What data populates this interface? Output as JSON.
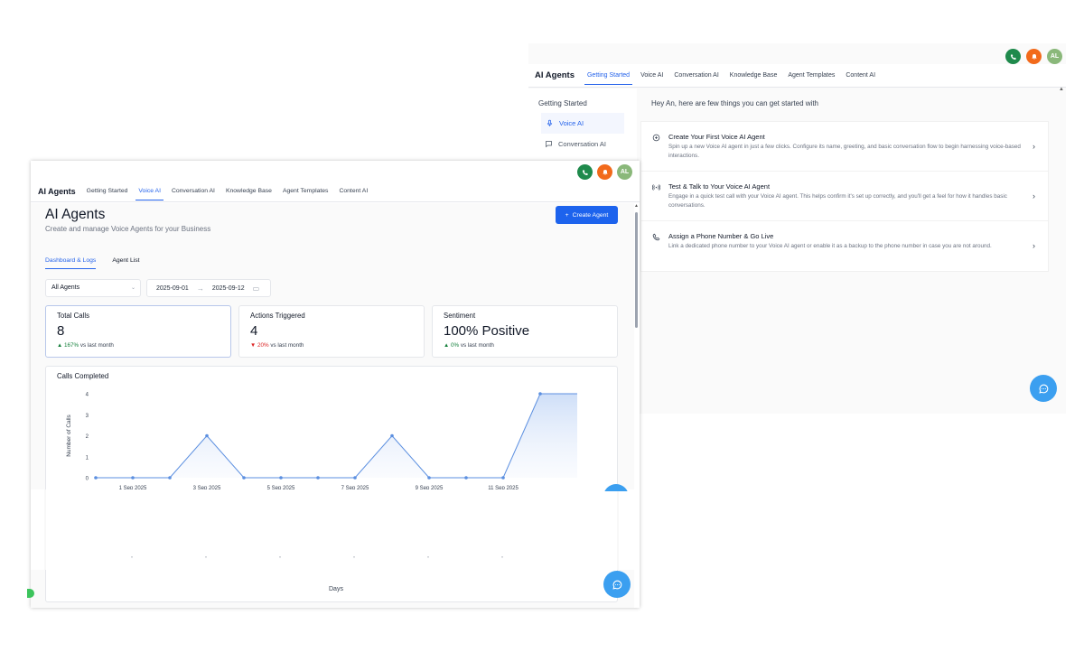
{
  "back": {
    "nav": {
      "title": "AI Agents",
      "tabs": [
        "Getting Started",
        "Voice AI",
        "Conversation AI",
        "Knowledge Base",
        "Agent Templates",
        "Content AI"
      ],
      "active_tab": "Getting Started"
    },
    "avatar_initials": "AL",
    "sidebar": {
      "heading": "Getting Started",
      "items": [
        {
          "label": "Voice AI",
          "icon": "mic-icon",
          "active": true
        },
        {
          "label": "Conversation AI",
          "icon": "chat-bubble-icon",
          "active": false
        }
      ]
    },
    "greeting": "Hey An, here are few things you can get started with",
    "cards": [
      {
        "icon": "plus-circle-icon",
        "title": "Create Your First Voice AI Agent",
        "desc": "Spin up a new Voice AI agent in just a few clicks. Configure its name, greeting, and basic conversation flow to begin harnessing voice-based interactions."
      },
      {
        "icon": "broadcast-icon",
        "title": "Test & Talk to Your Voice AI Agent",
        "desc": "Engage in a quick test call with your Voice AI agent. This helps confirm it's set up correctly, and you'll get a feel for how it handles basic conversations."
      },
      {
        "icon": "phone-icon",
        "title": "Assign a Phone Number & Go Live",
        "desc": "Link a dedicated phone number to your Voice AI agent or enable it as a backup to the phone number in case you are not around."
      }
    ]
  },
  "front": {
    "nav": {
      "title": "AI Agents",
      "tabs": [
        "Getting Started",
        "Voice AI",
        "Conversation AI",
        "Knowledge Base",
        "Agent Templates",
        "Content AI"
      ],
      "active_tab": "Voice AI"
    },
    "avatar_initials": "AL",
    "page_title": "AI Agents",
    "page_subtitle": "Create and manage Voice Agents for your Business",
    "create_button": "Create Agent",
    "sub_tabs": [
      "Dashboard & Logs",
      "Agent List"
    ],
    "filter_value": "All Agents",
    "date_start": "2025-09-01",
    "date_end": "2025-09-12",
    "stats": [
      {
        "label": "Total Calls",
        "value": "8",
        "pct": "167%",
        "dir": "up",
        "suffix": "vs last month"
      },
      {
        "label": "Actions Triggered",
        "value": "4",
        "pct": "20%",
        "dir": "down",
        "suffix": "vs last month"
      },
      {
        "label": "Sentiment",
        "value": "100% Positive",
        "pct": "0%",
        "dir": "up",
        "suffix": "vs last month"
      }
    ],
    "colors": {
      "accent": "#1d63ed",
      "up": "#16803c",
      "down": "#dc2626",
      "line": "#5b8fe0"
    }
  },
  "chart_data": {
    "type": "area",
    "title": "Calls Completed",
    "ylabel": "Number of Calls",
    "xlabel": "Days",
    "ylim": [
      0,
      4
    ],
    "yticks": [
      0,
      1,
      2,
      3,
      4
    ],
    "x": [
      "31 Aug 2025",
      "1 Sep 2025",
      "2 Sep 2025",
      "3 Sep 2025",
      "4 Sep 2025",
      "5 Sep 2025",
      "6 Sep 2025",
      "7 Sep 2025",
      "8 Sep 2025",
      "9 Sep 2025",
      "10 Sep 2025",
      "11 Sep 2025",
      "12 Sep 2025",
      "13 Sep 2025"
    ],
    "xtick_labels": [
      "1 Sep 2025",
      "3 Sep 2025",
      "5 Sep 2025",
      "7 Sep 2025",
      "9 Sep 2025",
      "11 Sep 2025"
    ],
    "series": [
      {
        "values": [
          0,
          0,
          0,
          2,
          0,
          0,
          0,
          0,
          2,
          0,
          0,
          0,
          4,
          4
        ]
      }
    ]
  }
}
